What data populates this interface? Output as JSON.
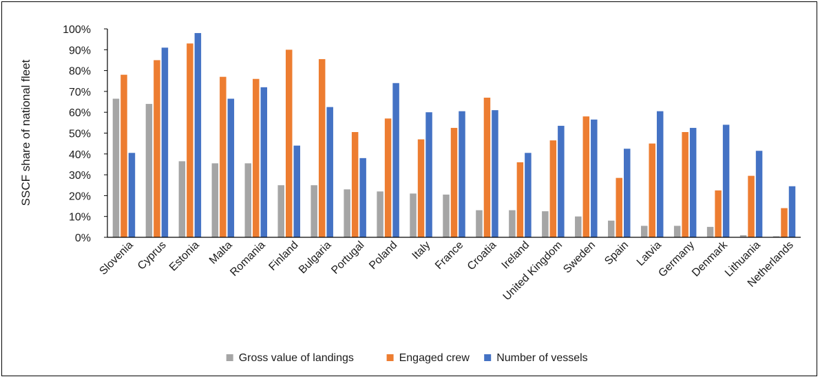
{
  "chart_data": {
    "type": "bar",
    "ylabel": "SSCF share of national fleet",
    "ylim": [
      0,
      100
    ],
    "yticks": [
      "0%",
      "10%",
      "20%",
      "30%",
      "40%",
      "50%",
      "60%",
      "70%",
      "80%",
      "90%",
      "100%"
    ],
    "grid": false,
    "legend_position": "bottom",
    "categories": [
      "Slovenia",
      "Cyprus",
      "Estonia",
      "Malta",
      "Romania",
      "Finland",
      "Bulgaria",
      "Portugal",
      "Poland",
      "Italy",
      "France",
      "Croatia",
      "Ireland",
      "United Kingdom",
      "Sweden",
      "Spain",
      "Latvia",
      "Germany",
      "Denmark",
      "Lithuania",
      "Netherlands"
    ],
    "series": [
      {
        "name": "Gross value of landings",
        "color": "#a5a5a5",
        "values": [
          66.5,
          64,
          36.5,
          35.5,
          35.5,
          25,
          25,
          23,
          22,
          21,
          20.5,
          13,
          13,
          12.5,
          10,
          8,
          5.5,
          5.5,
          5,
          1,
          0.5
        ]
      },
      {
        "name": "Engaged crew",
        "color": "#ed7d31",
        "values": [
          78,
          85,
          93,
          77,
          76,
          90,
          85.5,
          50.5,
          57,
          47,
          52.5,
          67,
          36,
          46.5,
          58,
          28.5,
          45,
          50.5,
          22.5,
          29.5,
          14
        ]
      },
      {
        "name": "Number of vessels",
        "color": "#4472c4",
        "values": [
          40.5,
          91,
          98,
          66.5,
          72,
          44,
          62.5,
          38,
          74,
          60,
          60.5,
          61,
          40.5,
          53.5,
          56.5,
          42.5,
          60.5,
          52.5,
          54,
          41.5,
          24.5
        ]
      }
    ]
  }
}
